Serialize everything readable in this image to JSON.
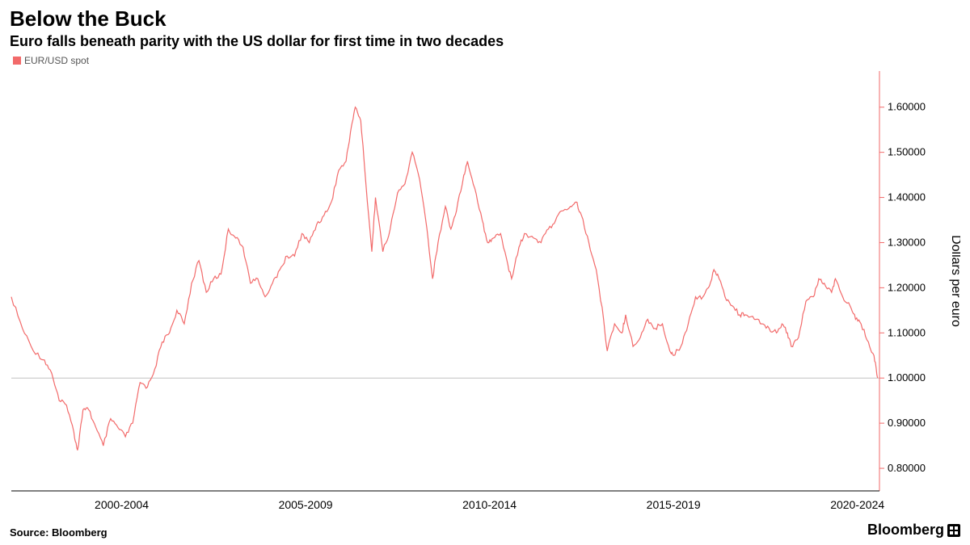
{
  "title": "Below the Buck",
  "subtitle": "Euro falls beneath parity with the US dollar for first time in two decades",
  "legend_label": "EUR/USD spot",
  "legend_swatch_color": "#f26a6a",
  "source": "Source: Bloomberg",
  "brand": "Bloomberg",
  "chart": {
    "type": "line",
    "series_color": "#f26a6a",
    "background_color": "#ffffff",
    "line_width": 1.2,
    "reference_line": {
      "y": 1.0,
      "color": "#c0c0c0",
      "width": 1
    },
    "y_axis": {
      "title": "Dollars per euro",
      "side": "right",
      "ylim": [
        0.75,
        1.68
      ],
      "ticks": [
        0.8,
        0.9,
        1.0,
        1.1,
        1.2,
        1.3,
        1.4,
        1.5,
        1.6
      ],
      "tick_format": "0.00000",
      "axis_color": "#f26a6a",
      "tick_color": "#f26a6a",
      "label_color": "#000000",
      "label_fontsize": 13,
      "title_fontsize": 16
    },
    "x_axis": {
      "xlim": [
        1999,
        2022.6
      ],
      "tick_labels": [
        "2000-2004",
        "2005-2009",
        "2010-2014",
        "2015-2019",
        "2020-2024"
      ],
      "tick_positions": [
        2002,
        2007,
        2012,
        2017,
        2022
      ],
      "axis_color": "#000000",
      "label_fontsize": 14
    },
    "data": [
      {
        "x": 1999.0,
        "y": 1.18
      },
      {
        "x": 1999.3,
        "y": 1.11
      },
      {
        "x": 1999.6,
        "y": 1.06
      },
      {
        "x": 1999.9,
        "y": 1.04
      },
      {
        "x": 2000.1,
        "y": 1.01
      },
      {
        "x": 2000.3,
        "y": 0.95
      },
      {
        "x": 2000.5,
        "y": 0.94
      },
      {
        "x": 2000.7,
        "y": 0.88
      },
      {
        "x": 2000.8,
        "y": 0.84
      },
      {
        "x": 2000.95,
        "y": 0.93
      },
      {
        "x": 2001.1,
        "y": 0.93
      },
      {
        "x": 2001.3,
        "y": 0.89
      },
      {
        "x": 2001.5,
        "y": 0.85
      },
      {
        "x": 2001.7,
        "y": 0.91
      },
      {
        "x": 2001.9,
        "y": 0.89
      },
      {
        "x": 2002.1,
        "y": 0.87
      },
      {
        "x": 2002.3,
        "y": 0.9
      },
      {
        "x": 2002.5,
        "y": 0.99
      },
      {
        "x": 2002.7,
        "y": 0.98
      },
      {
        "x": 2002.9,
        "y": 1.02
      },
      {
        "x": 2003.1,
        "y": 1.08
      },
      {
        "x": 2003.3,
        "y": 1.1
      },
      {
        "x": 2003.5,
        "y": 1.15
      },
      {
        "x": 2003.7,
        "y": 1.12
      },
      {
        "x": 2003.9,
        "y": 1.21
      },
      {
        "x": 2004.1,
        "y": 1.26
      },
      {
        "x": 2004.3,
        "y": 1.19
      },
      {
        "x": 2004.5,
        "y": 1.22
      },
      {
        "x": 2004.7,
        "y": 1.23
      },
      {
        "x": 2004.9,
        "y": 1.33
      },
      {
        "x": 2005.1,
        "y": 1.31
      },
      {
        "x": 2005.3,
        "y": 1.29
      },
      {
        "x": 2005.5,
        "y": 1.21
      },
      {
        "x": 2005.7,
        "y": 1.22
      },
      {
        "x": 2005.9,
        "y": 1.18
      },
      {
        "x": 2006.1,
        "y": 1.21
      },
      {
        "x": 2006.3,
        "y": 1.24
      },
      {
        "x": 2006.5,
        "y": 1.27
      },
      {
        "x": 2006.7,
        "y": 1.27
      },
      {
        "x": 2006.9,
        "y": 1.32
      },
      {
        "x": 2007.1,
        "y": 1.3
      },
      {
        "x": 2007.3,
        "y": 1.34
      },
      {
        "x": 2007.5,
        "y": 1.36
      },
      {
        "x": 2007.7,
        "y": 1.39
      },
      {
        "x": 2007.9,
        "y": 1.46
      },
      {
        "x": 2008.1,
        "y": 1.48
      },
      {
        "x": 2008.25,
        "y": 1.56
      },
      {
        "x": 2008.35,
        "y": 1.6
      },
      {
        "x": 2008.5,
        "y": 1.57
      },
      {
        "x": 2008.6,
        "y": 1.47
      },
      {
        "x": 2008.8,
        "y": 1.28
      },
      {
        "x": 2008.9,
        "y": 1.4
      },
      {
        "x": 2009.1,
        "y": 1.28
      },
      {
        "x": 2009.3,
        "y": 1.33
      },
      {
        "x": 2009.5,
        "y": 1.41
      },
      {
        "x": 2009.7,
        "y": 1.43
      },
      {
        "x": 2009.9,
        "y": 1.5
      },
      {
        "x": 2010.1,
        "y": 1.44
      },
      {
        "x": 2010.3,
        "y": 1.33
      },
      {
        "x": 2010.45,
        "y": 1.22
      },
      {
        "x": 2010.6,
        "y": 1.3
      },
      {
        "x": 2010.8,
        "y": 1.38
      },
      {
        "x": 2010.95,
        "y": 1.33
      },
      {
        "x": 2011.1,
        "y": 1.37
      },
      {
        "x": 2011.3,
        "y": 1.45
      },
      {
        "x": 2011.4,
        "y": 1.48
      },
      {
        "x": 2011.6,
        "y": 1.42
      },
      {
        "x": 2011.8,
        "y": 1.35
      },
      {
        "x": 2011.95,
        "y": 1.3
      },
      {
        "x": 2012.1,
        "y": 1.31
      },
      {
        "x": 2012.3,
        "y": 1.32
      },
      {
        "x": 2012.5,
        "y": 1.25
      },
      {
        "x": 2012.6,
        "y": 1.22
      },
      {
        "x": 2012.8,
        "y": 1.29
      },
      {
        "x": 2012.95,
        "y": 1.32
      },
      {
        "x": 2013.2,
        "y": 1.31
      },
      {
        "x": 2013.4,
        "y": 1.3
      },
      {
        "x": 2013.6,
        "y": 1.33
      },
      {
        "x": 2013.8,
        "y": 1.35
      },
      {
        "x": 2013.95,
        "y": 1.37
      },
      {
        "x": 2014.2,
        "y": 1.38
      },
      {
        "x": 2014.35,
        "y": 1.39
      },
      {
        "x": 2014.5,
        "y": 1.36
      },
      {
        "x": 2014.7,
        "y": 1.3
      },
      {
        "x": 2014.9,
        "y": 1.24
      },
      {
        "x": 2015.1,
        "y": 1.13
      },
      {
        "x": 2015.2,
        "y": 1.06
      },
      {
        "x": 2015.4,
        "y": 1.12
      },
      {
        "x": 2015.6,
        "y": 1.1
      },
      {
        "x": 2015.7,
        "y": 1.14
      },
      {
        "x": 2015.9,
        "y": 1.07
      },
      {
        "x": 2016.1,
        "y": 1.09
      },
      {
        "x": 2016.3,
        "y": 1.13
      },
      {
        "x": 2016.5,
        "y": 1.11
      },
      {
        "x": 2016.7,
        "y": 1.12
      },
      {
        "x": 2016.9,
        "y": 1.06
      },
      {
        "x": 2017.0,
        "y": 1.05
      },
      {
        "x": 2017.2,
        "y": 1.07
      },
      {
        "x": 2017.4,
        "y": 1.12
      },
      {
        "x": 2017.6,
        "y": 1.18
      },
      {
        "x": 2017.8,
        "y": 1.18
      },
      {
        "x": 2017.95,
        "y": 1.2
      },
      {
        "x": 2018.1,
        "y": 1.24
      },
      {
        "x": 2018.2,
        "y": 1.23
      },
      {
        "x": 2018.4,
        "y": 1.18
      },
      {
        "x": 2018.6,
        "y": 1.16
      },
      {
        "x": 2018.8,
        "y": 1.14
      },
      {
        "x": 2018.95,
        "y": 1.14
      },
      {
        "x": 2019.2,
        "y": 1.13
      },
      {
        "x": 2019.4,
        "y": 1.12
      },
      {
        "x": 2019.6,
        "y": 1.11
      },
      {
        "x": 2019.8,
        "y": 1.1
      },
      {
        "x": 2019.95,
        "y": 1.12
      },
      {
        "x": 2020.1,
        "y": 1.1
      },
      {
        "x": 2020.2,
        "y": 1.07
      },
      {
        "x": 2020.4,
        "y": 1.09
      },
      {
        "x": 2020.6,
        "y": 1.17
      },
      {
        "x": 2020.8,
        "y": 1.18
      },
      {
        "x": 2020.95,
        "y": 1.22
      },
      {
        "x": 2021.1,
        "y": 1.21
      },
      {
        "x": 2021.3,
        "y": 1.19
      },
      {
        "x": 2021.4,
        "y": 1.22
      },
      {
        "x": 2021.6,
        "y": 1.18
      },
      {
        "x": 2021.8,
        "y": 1.16
      },
      {
        "x": 2021.95,
        "y": 1.13
      },
      {
        "x": 2022.1,
        "y": 1.12
      },
      {
        "x": 2022.3,
        "y": 1.08
      },
      {
        "x": 2022.45,
        "y": 1.05
      },
      {
        "x": 2022.55,
        "y": 1.0
      }
    ]
  }
}
